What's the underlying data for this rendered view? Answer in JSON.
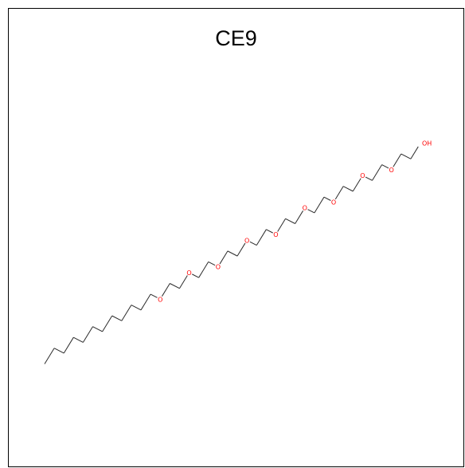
{
  "title": "CE9",
  "molecule": {
    "bond_color": "#2b2b2b",
    "heteroatom_color": "#ff0000",
    "oxygen_label": "O",
    "hydroxyl_label": "OH",
    "alkyl_chain_carbons": 12,
    "ethoxy_units": 9
  }
}
